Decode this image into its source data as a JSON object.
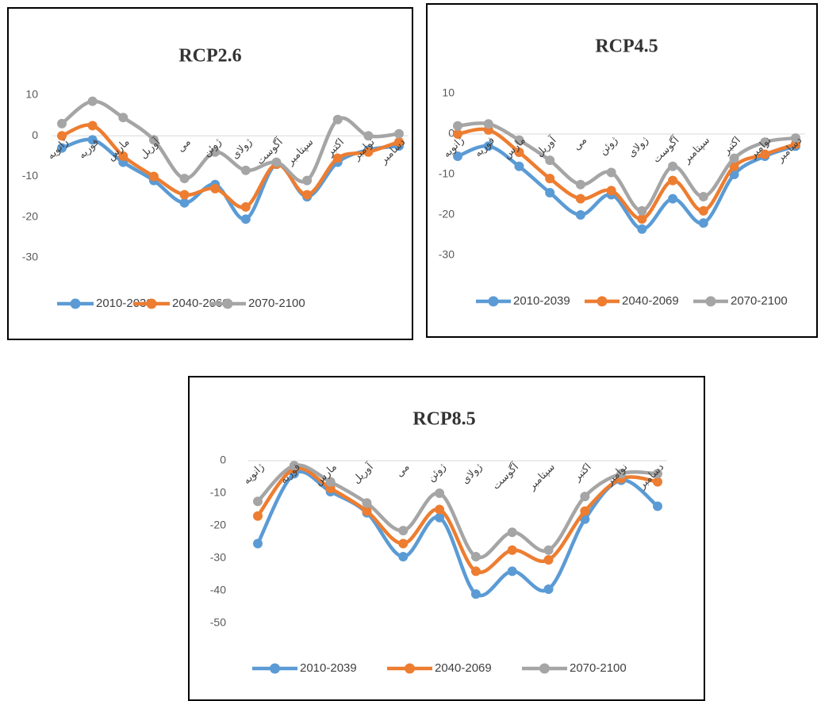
{
  "chart_data": [
    {
      "type": "line",
      "title": "RCP2.6",
      "categories": [
        "ژانویه",
        "فوریه",
        "مارس",
        "آوریل",
        "می",
        "ژوئن",
        "ژولای",
        "آگوست",
        "سپتامبر",
        "اکتبر",
        "نوامبر",
        "دسامبر"
      ],
      "series": [
        {
          "name": "2010-2039",
          "color": "#5b9bd5",
          "values": [
            -3,
            -1,
            -6.5,
            -11,
            -16.5,
            -12,
            -20.5,
            -7,
            -15,
            -6.5,
            -3.5,
            -2.5
          ]
        },
        {
          "name": "2040-2069",
          "color": "#ed7d31",
          "values": [
            0,
            2.5,
            -5,
            -10,
            -14.5,
            -13,
            -17.5,
            -7,
            -14.5,
            -5.5,
            -4,
            -1.5
          ]
        },
        {
          "name": "2070-2100",
          "color": "#a5a5a5",
          "values": [
            3,
            8.5,
            4.5,
            -1,
            -10.5,
            -4,
            -8.5,
            -6.5,
            -11,
            4,
            0,
            0.5
          ]
        }
      ],
      "ylim": [
        -30,
        10
      ],
      "yticks": [
        10,
        0,
        -10,
        -20,
        -30
      ],
      "grid": false,
      "legend": "bottom"
    },
    {
      "type": "line",
      "title": "RCP4.5",
      "categories": [
        "ژانویه",
        "فوریه",
        "مارس",
        "آوریل",
        "می",
        "ژوئن",
        "ژولای",
        "آگوست",
        "سپتامبر",
        "اکتبر",
        "نوامبر",
        "دسامبر"
      ],
      "series": [
        {
          "name": "2010-2039",
          "color": "#5b9bd5",
          "values": [
            -5.5,
            -3,
            -8,
            -14.5,
            -20,
            -15,
            -23.5,
            -16,
            -22,
            -10,
            -5.5,
            -3
          ]
        },
        {
          "name": "2040-2069",
          "color": "#ed7d31",
          "values": [
            0,
            1,
            -4.5,
            -11,
            -16,
            -14,
            -21,
            -11.5,
            -19,
            -8,
            -5,
            -2.5
          ]
        },
        {
          "name": "2070-2100",
          "color": "#a5a5a5",
          "values": [
            2,
            2.5,
            -1.5,
            -6.5,
            -12.5,
            -9.5,
            -19,
            -8,
            -15.5,
            -6,
            -2,
            -1
          ]
        }
      ],
      "ylim": [
        -30,
        10
      ],
      "yticks": [
        10,
        0,
        -10,
        -20,
        -30
      ],
      "grid": false,
      "legend": "bottom"
    },
    {
      "type": "line",
      "title": "RCP8.5",
      "categories": [
        "ژانویه",
        "فوریه",
        "مارس",
        "آوریل",
        "می",
        "ژوئن",
        "ژولای",
        "آگوست",
        "سپتامبر",
        "اکتبر",
        "نوامبر",
        "دسامبر"
      ],
      "series": [
        {
          "name": "2010-2039",
          "color": "#5b9bd5",
          "values": [
            -25.5,
            -4,
            -9.5,
            -16,
            -29.5,
            -17.5,
            -41,
            -34,
            -39.5,
            -18,
            -6,
            -14
          ]
        },
        {
          "name": "2040-2069",
          "color": "#ed7d31",
          "values": [
            -17,
            -2.5,
            -8.5,
            -15.5,
            -25.5,
            -15,
            -34,
            -27.5,
            -30.5,
            -15.5,
            -5.5,
            -6.5
          ]
        },
        {
          "name": "2070-2100",
          "color": "#a5a5a5",
          "values": [
            -12.5,
            -1.5,
            -6.5,
            -13,
            -21.5,
            -10,
            -29.5,
            -22,
            -27.5,
            -11,
            -4,
            -4
          ]
        }
      ],
      "ylim": [
        -50,
        0
      ],
      "yticks": [
        0,
        -10,
        -20,
        -30,
        -40,
        -50
      ],
      "grid": false,
      "legend": "bottom"
    }
  ]
}
